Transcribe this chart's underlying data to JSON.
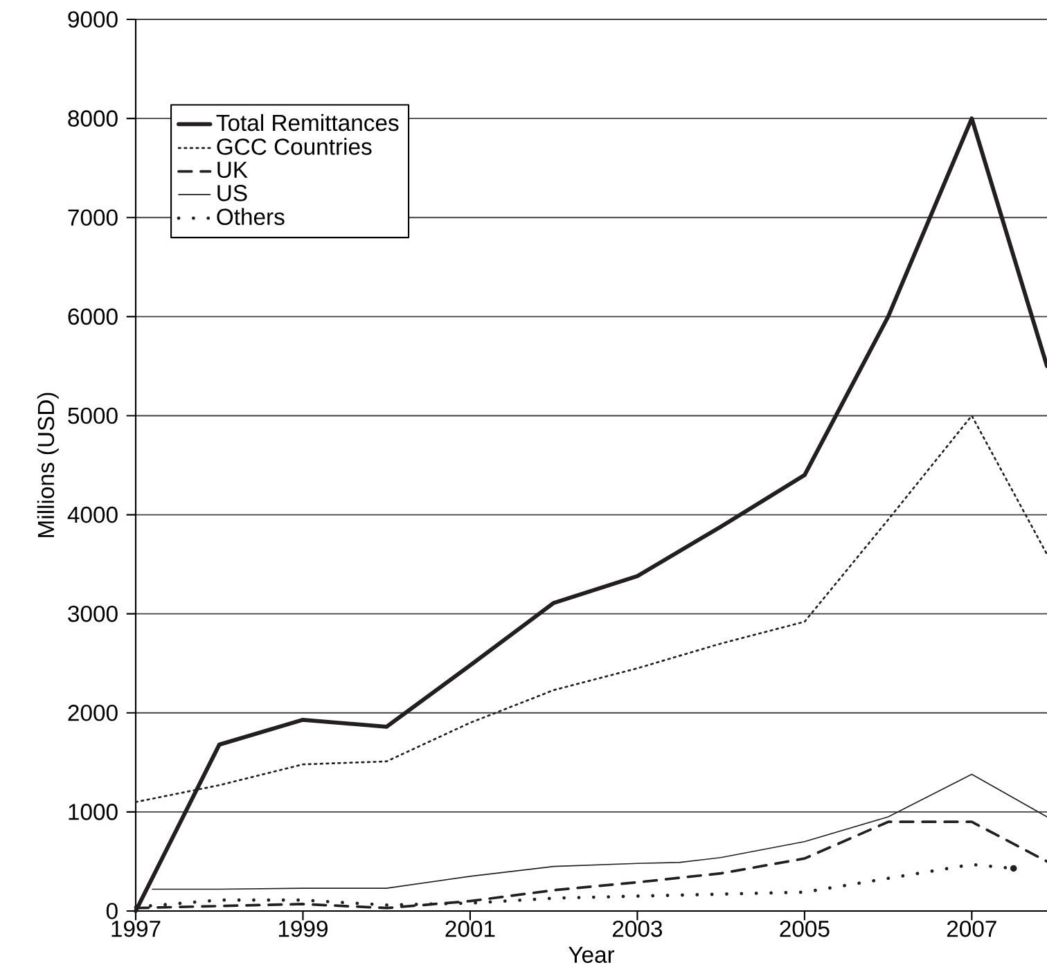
{
  "chart_data": {
    "type": "line",
    "xlabel": "Year",
    "ylabel": "Millions (USD)",
    "xlim": [
      1997,
      2007.9
    ],
    "ylim": [
      0,
      9000
    ],
    "xticks": [
      1997,
      1999,
      2001,
      2003,
      2005,
      2007
    ],
    "yticks": [
      0,
      1000,
      2000,
      3000,
      4000,
      5000,
      6000,
      7000,
      8000,
      9000
    ],
    "grid": "y",
    "legend": "top left",
    "marker": "none",
    "series": [
      {
        "name": "Total Remittances",
        "color": "#231f20",
        "line_style": "solid",
        "x": [
          1997,
          1998,
          1999,
          2000,
          2001,
          2002,
          2003,
          2004,
          2005,
          2006,
          2007,
          2007.9
        ],
        "values": [
          0,
          1680,
          1930,
          1860,
          2480,
          3110,
          3380,
          3880,
          4400,
          6000,
          8000,
          5500
        ]
      },
      {
        "name": "GCC Countries",
        "color": "#231f20",
        "line_style": "dotted",
        "x": [
          1997,
          1998,
          1999,
          2000,
          2001,
          2002,
          2003,
          2004,
          2005,
          2006,
          2007,
          2007.9
        ],
        "values": [
          1100,
          1270,
          1480,
          1510,
          1900,
          2230,
          2450,
          2700,
          2920,
          3950,
          5000,
          3600
        ]
      },
      {
        "name": "UK",
        "color": "#231f20",
        "line_style": "dashed",
        "x": [
          1997,
          1998,
          1999,
          2000,
          2001,
          2002,
          2003,
          2004,
          2005,
          2006,
          2007,
          2007.9
        ],
        "values": [
          30,
          50,
          70,
          30,
          100,
          210,
          290,
          380,
          530,
          900,
          900,
          500
        ]
      },
      {
        "name": "US",
        "color": "#231f20",
        "line_style": "solid",
        "x": [
          1997.2,
          1998,
          1999,
          2000,
          2001,
          2002,
          2003,
          2003.5,
          2004,
          2005,
          2006,
          2007,
          2007.9
        ],
        "values": [
          220,
          220,
          230,
          230,
          350,
          450,
          480,
          490,
          540,
          700,
          950,
          1380,
          950
        ]
      },
      {
        "name": "Others",
        "color": "#231f20",
        "line_style": "loosely dotted",
        "x": [
          1997,
          1998,
          1999,
          2000,
          2001,
          2002,
          2003,
          2004,
          2005,
          2006,
          2007,
          2007.5
        ],
        "values": [
          40,
          110,
          110,
          60,
          80,
          130,
          150,
          170,
          190,
          330,
          470,
          430
        ]
      }
    ]
  }
}
